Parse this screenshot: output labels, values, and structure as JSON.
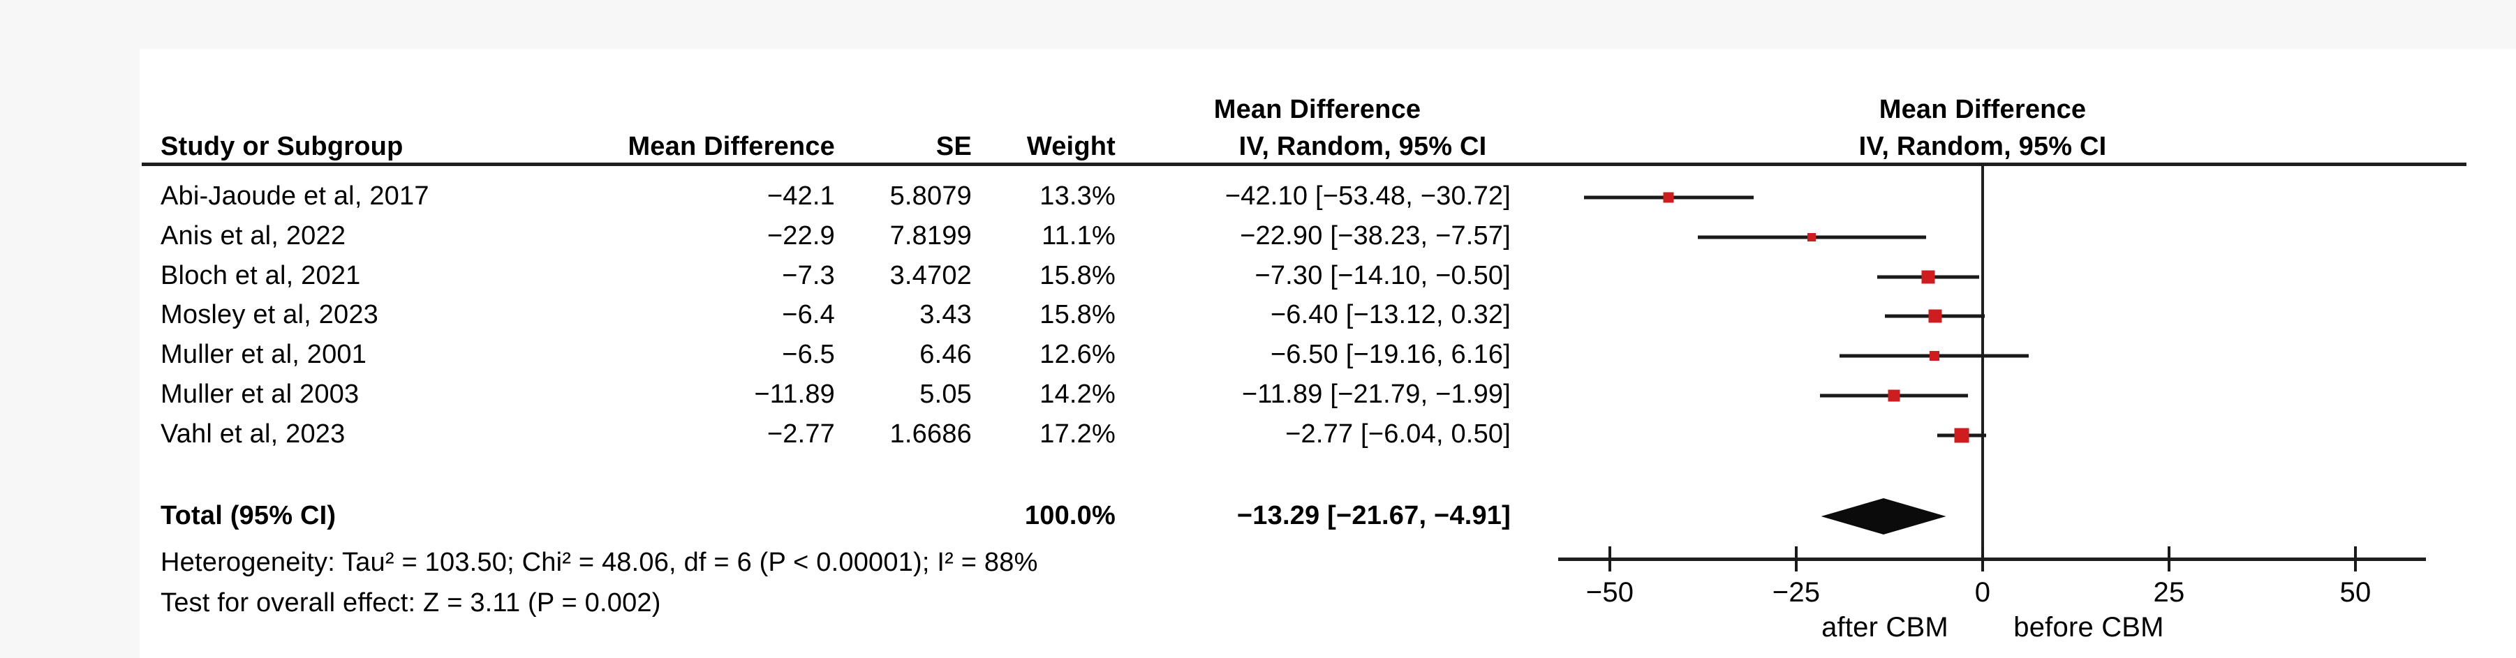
{
  "colors": {
    "marker_red": "#cf1d1f",
    "line_black": "#1a1a1a",
    "diamond_black": "#0b0b0b",
    "text": "#000000",
    "figure_background": "#ffffff",
    "page_background": "#f7f7f7"
  },
  "table": {
    "header_row1": {
      "ci_col": "Mean Difference",
      "plot_col": "Mean Difference"
    },
    "header_row2": {
      "study": "Study or Subgroup",
      "md": "Mean Difference",
      "se": "SE",
      "weight": "Weight",
      "ci": "IV, Random, 95% CI",
      "plot": "IV, Random, 95% CI"
    },
    "rows": [
      {
        "study": "Abi-Jaoude et al, 2017",
        "md": "−42.1",
        "se": "5.8079",
        "weight": "13.3%",
        "ci": "−42.10 [−53.48, −30.72]"
      },
      {
        "study": "Anis et al, 2022",
        "md": "−22.9",
        "se": "7.8199",
        "weight": "11.1%",
        "ci": "−22.90 [−38.23, −7.57]"
      },
      {
        "study": "Bloch et al, 2021",
        "md": "−7.3",
        "se": "3.4702",
        "weight": "15.8%",
        "ci": "−7.30 [−14.10, −0.50]"
      },
      {
        "study": "Mosley et al, 2023",
        "md": "−6.4",
        "se": "3.43",
        "weight": "15.8%",
        "ci": "−6.40 [−13.12, 0.32]"
      },
      {
        "study": "Muller et al, 2001",
        "md": "−6.5",
        "se": "6.46",
        "weight": "12.6%",
        "ci": "−6.50 [−19.16, 6.16]"
      },
      {
        "study": "Muller et al 2003",
        "md": "−11.89",
        "se": "5.05",
        "weight": "14.2%",
        "ci": "−11.89 [−21.79, −1.99]"
      },
      {
        "study": "Vahl et al, 2023",
        "md": "−2.77",
        "se": "1.6686",
        "weight": "17.2%",
        "ci": "−2.77 [−6.04, 0.50]"
      }
    ],
    "total_row": {
      "study": "Total (95% CI)",
      "weight": "100.0%",
      "ci": "−13.29 [−21.67, −4.91]"
    }
  },
  "footnotes": {
    "heterogeneity": "Heterogeneity: Tau² = 103.50; Chi² = 48.06, df = 6 (P < 0.00001); I² = 88%",
    "overall_effect": "Test for overall effect: Z = 3.11 (P = 0.002)"
  },
  "axis": {
    "tick_labels": [
      "−50",
      "−25",
      "0",
      "25",
      "50"
    ],
    "left_group_label": "after CBM",
    "right_group_label": "before CBM"
  },
  "chart_data": {
    "type": "scatter",
    "chart_kind": "forest_plot_meta_analysis",
    "effect_measure": "Mean Difference",
    "model": "IV, Random, 95% CI",
    "studies": [
      {
        "name": "Abi-Jaoude et al, 2017",
        "mean": -42.1,
        "se": 5.8079,
        "weight_pct": 13.3,
        "ci": [
          -53.48,
          -30.72
        ]
      },
      {
        "name": "Anis et al, 2022",
        "mean": -22.9,
        "se": 7.8199,
        "weight_pct": 11.1,
        "ci": [
          -38.23,
          -7.57
        ]
      },
      {
        "name": "Bloch et al, 2021",
        "mean": -7.3,
        "se": 3.4702,
        "weight_pct": 15.8,
        "ci": [
          -14.1,
          -0.5
        ]
      },
      {
        "name": "Mosley et al, 2023",
        "mean": -6.4,
        "se": 3.43,
        "weight_pct": 15.8,
        "ci": [
          -13.12,
          0.32
        ]
      },
      {
        "name": "Muller et al, 2001",
        "mean": -6.5,
        "se": 6.46,
        "weight_pct": 12.6,
        "ci": [
          -19.16,
          6.16
        ]
      },
      {
        "name": "Muller et al 2003",
        "mean": -11.89,
        "se": 5.05,
        "weight_pct": 14.2,
        "ci": [
          -21.79,
          -1.99
        ]
      },
      {
        "name": "Vahl et al, 2023",
        "mean": -2.77,
        "se": 1.6686,
        "weight_pct": 17.2,
        "ci": [
          -6.04,
          0.5
        ]
      }
    ],
    "total": {
      "label": "Total (95% CI)",
      "mean": -13.29,
      "ci": [
        -21.67,
        -4.91
      ],
      "weight_pct": 100.0
    },
    "heterogeneity": {
      "tau2": 103.5,
      "chi2": 48.06,
      "df": 6,
      "p_text": "P < 0.00001",
      "i2_pct": 88
    },
    "overall_effect": {
      "z": 3.11,
      "p_text": "P = 0.002"
    },
    "xaxis": {
      "ticks": [
        -50,
        -25,
        0,
        25,
        50
      ],
      "range": [
        -50,
        50
      ],
      "zero_line": 0,
      "label_left_of_zero": "after CBM",
      "label_right_of_zero": "before CBM"
    },
    "legend_position": "none",
    "grid": false
  }
}
